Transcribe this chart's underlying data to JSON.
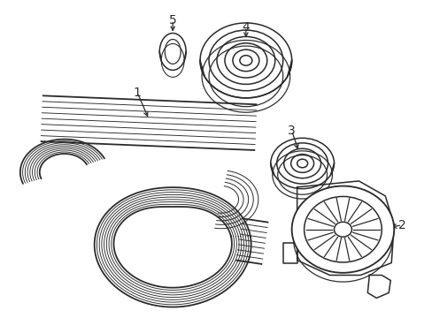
{
  "background_color": "#ffffff",
  "line_color": "#2a2a2a",
  "line_width": 1.1,
  "label_fontsize": 10,
  "figsize": [
    4.89,
    3.6
  ],
  "dpi": 100,
  "n_belt_ribs": 8,
  "belt_color": "#2a2a2a"
}
